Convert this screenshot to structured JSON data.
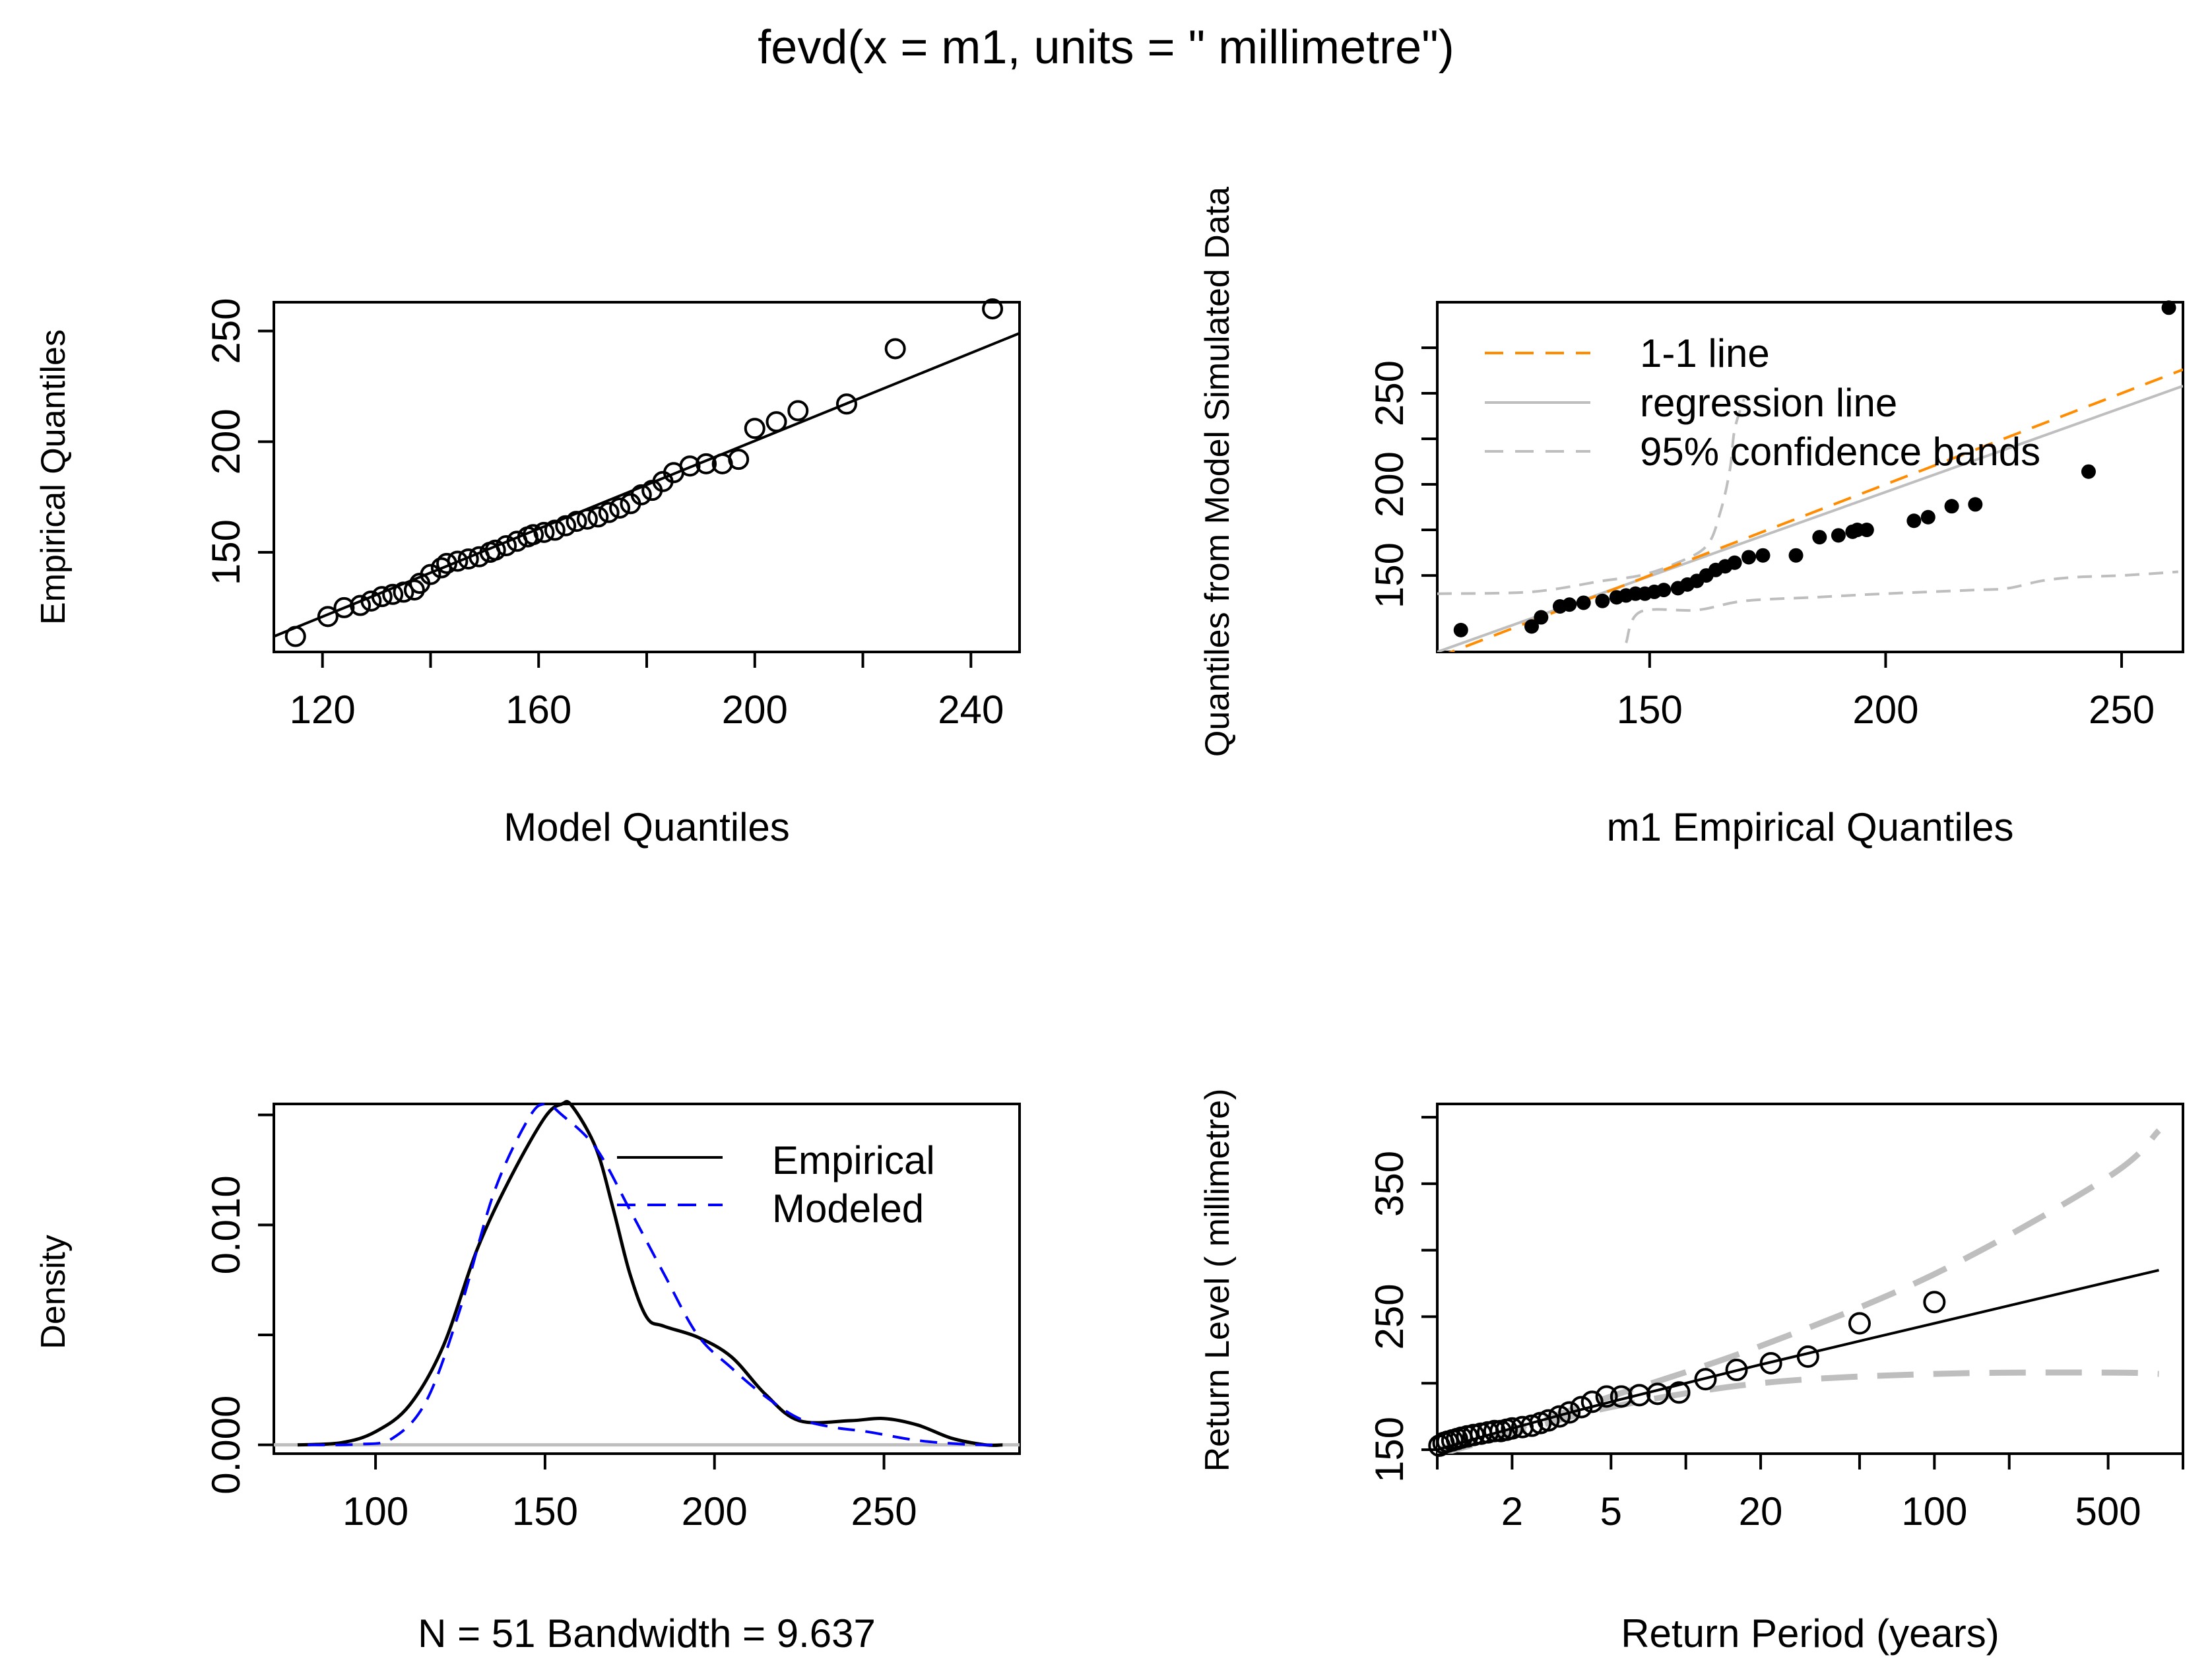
{
  "title": "fevd(x = m1, units = \" millimetre\")",
  "colors": {
    "black": "#000000",
    "orange": "#ff8c00",
    "gray": "#bebebe",
    "blue": "#0000ff"
  },
  "chart_data": [
    {
      "type": "scatter",
      "panel": "qq-model",
      "xlabel": "Model Quantiles",
      "ylabel": "Empirical Quantiles",
      "xlim": [
        111,
        249
      ],
      "ylim": [
        105,
        263
      ],
      "xticks": [
        120,
        160,
        200,
        240
      ],
      "yticks": [
        150,
        200,
        250
      ],
      "points": [
        [
          115,
          112
        ],
        [
          121,
          121
        ],
        [
          124,
          125
        ],
        [
          127,
          126
        ],
        [
          129,
          128
        ],
        [
          131,
          130
        ],
        [
          133,
          131
        ],
        [
          135,
          132
        ],
        [
          137,
          133
        ],
        [
          138,
          136
        ],
        [
          140,
          140
        ],
        [
          142,
          143
        ],
        [
          143,
          145
        ],
        [
          145,
          146
        ],
        [
          147,
          147
        ],
        [
          149,
          148
        ],
        [
          151,
          150
        ],
        [
          152,
          151
        ],
        [
          154,
          153
        ],
        [
          156,
          155
        ],
        [
          158,
          157
        ],
        [
          159,
          158
        ],
        [
          161,
          159
        ],
        [
          163,
          160
        ],
        [
          165,
          162
        ],
        [
          167,
          164
        ],
        [
          169,
          165
        ],
        [
          171,
          166
        ],
        [
          173,
          168
        ],
        [
          175,
          170
        ],
        [
          177,
          172
        ],
        [
          179,
          176
        ],
        [
          181,
          178
        ],
        [
          183,
          182
        ],
        [
          185,
          186
        ],
        [
          188,
          189
        ],
        [
          191,
          190
        ],
        [
          194,
          190
        ],
        [
          197,
          192
        ],
        [
          200,
          206
        ],
        [
          204,
          209
        ],
        [
          208,
          214
        ],
        [
          217,
          217
        ],
        [
          226,
          242
        ],
        [
          244,
          260
        ]
      ],
      "line": [
        [
          111,
          112
        ],
        [
          249,
          249
        ]
      ]
    },
    {
      "type": "scatter",
      "panel": "qq-simulated",
      "xlabel": "m1 Empirical Quantiles",
      "ylabel": "Quantiles from Model Simulated Data",
      "xlim": [
        105,
        263
      ],
      "ylim": [
        108,
        300
      ],
      "xticks": [
        150,
        200,
        250
      ],
      "yticks": [
        150,
        200,
        250
      ],
      "legend": [
        "1-1 line",
        "regression line",
        "95% confidence bands"
      ],
      "points": [
        [
          110,
          120
        ],
        [
          125,
          122
        ],
        [
          127,
          127
        ],
        [
          131,
          133
        ],
        [
          133,
          134
        ],
        [
          136,
          135
        ],
        [
          140,
          136
        ],
        [
          143,
          138
        ],
        [
          145,
          139
        ],
        [
          147,
          140
        ],
        [
          149,
          140
        ],
        [
          151,
          141
        ],
        [
          153,
          142
        ],
        [
          156,
          143
        ],
        [
          158,
          145
        ],
        [
          160,
          147
        ],
        [
          162,
          150
        ],
        [
          164,
          153
        ],
        [
          166,
          155
        ],
        [
          168,
          157
        ],
        [
          171,
          160
        ],
        [
          174,
          161
        ],
        [
          181,
          161
        ],
        [
          186,
          171
        ],
        [
          190,
          172
        ],
        [
          193,
          174
        ],
        [
          194,
          175
        ],
        [
          196,
          175
        ],
        [
          206,
          180
        ],
        [
          209,
          182
        ],
        [
          214,
          188
        ],
        [
          219,
          189
        ],
        [
          243,
          207
        ],
        [
          260,
          297
        ]
      ],
      "one_to_one": [
        [
          105,
          105
        ],
        [
          263,
          263
        ]
      ],
      "regression": [
        [
          105,
          108
        ],
        [
          263,
          254
        ]
      ],
      "upper_band": [
        [
          105,
          140
        ],
        [
          125,
          141
        ],
        [
          140,
          147
        ],
        [
          148,
          150
        ],
        [
          155,
          156
        ],
        [
          162,
          166
        ],
        [
          165,
          185
        ],
        [
          167,
          208
        ],
        [
          168,
          230
        ],
        [
          170,
          247
        ]
      ],
      "lower_band": [
        [
          145,
          113
        ],
        [
          148,
          130
        ],
        [
          160,
          131
        ],
        [
          170,
          136
        ],
        [
          185,
          138
        ],
        [
          200,
          140
        ],
        [
          219,
          142
        ],
        [
          226,
          143
        ],
        [
          233,
          147
        ],
        [
          240,
          149
        ],
        [
          250,
          150
        ],
        [
          262,
          152
        ]
      ]
    },
    {
      "type": "line",
      "panel": "density",
      "xlabel": "N = 51   Bandwidth = 9.637",
      "ylabel": "Density",
      "xlim": [
        70,
        290
      ],
      "ylim": [
        -0.0004,
        0.0155
      ],
      "xticks": [
        100,
        150,
        200,
        250
      ],
      "yticks_labeled": [
        0.0,
        0.01
      ],
      "ytick_labels": [
        "0.000",
        "0.010"
      ],
      "yticks_minor": [
        0.005,
        0.015
      ],
      "legend": [
        "Empirical",
        "Modeled"
      ],
      "series": [
        {
          "name": "Empirical",
          "x": [
            77,
            90,
            100,
            110,
            120,
            130,
            140,
            150,
            155,
            158,
            165,
            170,
            175,
            180,
            185,
            195,
            205,
            215,
            225,
            240,
            250,
            260,
            270,
            280,
            285
          ],
          "y": [
            0,
            0.0001,
            0.0006,
            0.0018,
            0.0045,
            0.0089,
            0.0122,
            0.0149,
            0.0155,
            0.0154,
            0.0135,
            0.0108,
            0.0078,
            0.0058,
            0.0054,
            0.0049,
            0.004,
            0.0023,
            0.0011,
            0.0011,
            0.0012,
            0.0009,
            0.0003,
            0,
            0
          ]
        },
        {
          "name": "Modeled",
          "x": [
            80,
            95,
            105,
            115,
            125,
            135,
            145,
            150,
            155,
            165,
            175,
            185,
            195,
            205,
            215,
            225,
            235,
            245,
            260,
            275,
            285
          ],
          "y": [
            0,
            3e-05,
            0.0003,
            0.002,
            0.0062,
            0.0115,
            0.0148,
            0.0155,
            0.015,
            0.0135,
            0.0107,
            0.0078,
            0.005,
            0.0035,
            0.0022,
            0.0012,
            0.0008,
            0.0006,
            0.0002,
            2e-05,
            0
          ]
        }
      ],
      "baseline": 0
    },
    {
      "type": "line",
      "panel": "return-level",
      "xlabel": "Return Period (years)",
      "ylabel": "Return Level ( millimetre)",
      "xscale": "log",
      "xlim": [
        1,
        1000
      ],
      "ylim": [
        147,
        410
      ],
      "xticks": [
        2,
        5,
        20,
        100,
        500
      ],
      "xticks_minor": [
        1,
        10,
        50,
        200,
        1000
      ],
      "ytick_labels": [
        "150",
        "250",
        "350"
      ],
      "yticks_labeled": [
        150,
        250,
        350
      ],
      "yticks_minor": [
        200,
        300,
        400
      ],
      "points": [
        [
          1.02,
          153
        ],
        [
          1.06,
          155
        ],
        [
          1.1,
          156
        ],
        [
          1.15,
          157
        ],
        [
          1.2,
          158
        ],
        [
          1.25,
          159
        ],
        [
          1.32,
          160
        ],
        [
          1.4,
          161
        ],
        [
          1.5,
          162
        ],
        [
          1.6,
          163
        ],
        [
          1.7,
          164
        ],
        [
          1.8,
          164
        ],
        [
          1.9,
          165
        ],
        [
          2.0,
          166
        ],
        [
          2.2,
          167
        ],
        [
          2.4,
          168
        ],
        [
          2.6,
          170
        ],
        [
          2.8,
          172
        ],
        [
          3.1,
          175
        ],
        [
          3.4,
          178
        ],
        [
          3.8,
          182
        ],
        [
          4.2,
          186
        ],
        [
          4.8,
          190
        ],
        [
          5.5,
          190
        ],
        [
          6.5,
          191
        ],
        [
          7.7,
          192
        ],
        [
          9.4,
          193
        ],
        [
          12,
          203
        ],
        [
          16,
          210
        ],
        [
          22,
          215
        ],
        [
          31,
          220
        ],
        [
          50,
          245
        ],
        [
          100,
          261
        ]
      ],
      "fit": [
        [
          1,
          150
        ],
        [
          2,
          166
        ],
        [
          5,
          186
        ],
        [
          20,
          214
        ],
        [
          100,
          245
        ],
        [
          500,
          276
        ],
        [
          800,
          285
        ]
      ],
      "upper_ci": [
        [
          1,
          150
        ],
        [
          2,
          165
        ],
        [
          5,
          190
        ],
        [
          20,
          228
        ],
        [
          100,
          282
        ],
        [
          500,
          355
        ],
        [
          800,
          390
        ]
      ],
      "lower_ci": [
        [
          1,
          146
        ],
        [
          2,
          162
        ],
        [
          5,
          182
        ],
        [
          20,
          200
        ],
        [
          100,
          207
        ],
        [
          500,
          208
        ],
        [
          800,
          207
        ]
      ]
    }
  ]
}
